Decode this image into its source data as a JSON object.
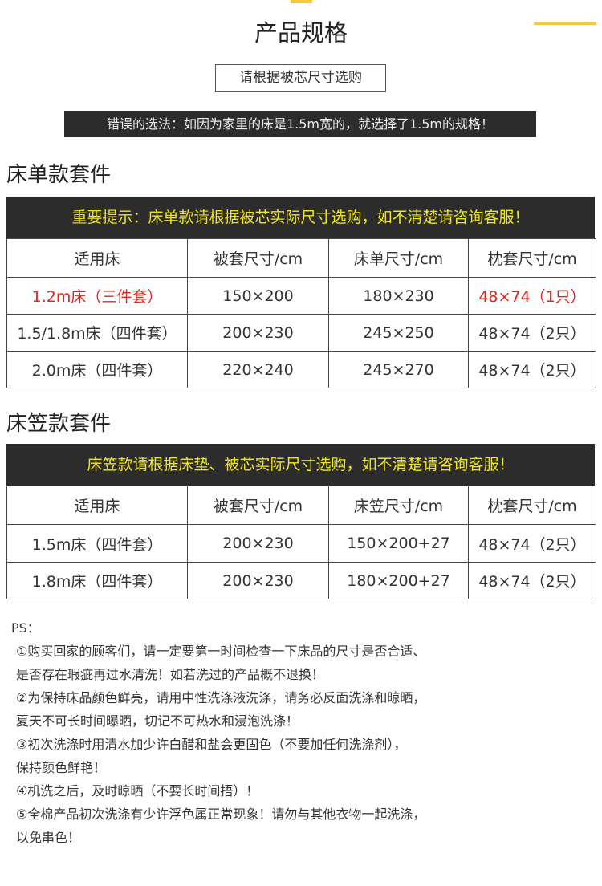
{
  "title": "产品规格",
  "hint": "请根据被芯尺寸选购",
  "wrong_choice": "错误的选法：如因为家里的床是1.5m宽的，就选择了1.5m的规格！",
  "accent_color": "#f5c842",
  "highlight_color": "#e8221a",
  "sheet_set": {
    "title": "床单款套件",
    "notice": "重要提示：床单款请根据被芯实际尺寸选购，如不清楚请咨询客服！",
    "headers": [
      "适用床",
      "被套尺寸/cm",
      "床单尺寸/cm",
      "枕套尺寸/cm"
    ],
    "rows": [
      [
        "1.2m床（三件套）",
        "150×200",
        "180×230",
        "48×74（1只）"
      ],
      [
        "1.5/1.8m床（四件套）",
        "200×230",
        "245×250",
        "48×74（2只）"
      ],
      [
        "2.0m床（四件套）",
        "220×240",
        "245×270",
        "48×74（2只）"
      ]
    ]
  },
  "fitted_set": {
    "title": "床笠款套件",
    "notice": "床笠款请根据床垫、被芯实际尺寸选购，如不清楚请咨询客服！",
    "headers": [
      "适用床",
      "被套尺寸/cm",
      "床笠尺寸/cm",
      "枕套尺寸/cm"
    ],
    "rows": [
      [
        "1.5m床（四件套）",
        "200×230",
        "150×200+27",
        "48×74（2只）"
      ],
      [
        "1.8m床（四件套）",
        "200×230",
        "180×200+27",
        "48×74（2只）"
      ]
    ]
  },
  "ps": {
    "label": "PS：",
    "lines": [
      "①购买回家的顾客们，请一定要第一时间检查一下床品的尺寸是否合适、",
      "是否存在瑕疵再过水清洗！如若洗过的产品概不退换！",
      "②为保持床品颜色鲜亮，请用中性洗涤液洗涤，请务必反面洗涤和晾晒，",
      "夏天不可长时间曝晒，切记不可热水和浸泡洗涤！",
      "③初次洗涤时用清水加少许白醋和盐会更固色（不要加任何洗涤剂），",
      "保持颜色鲜艳！",
      "④机洗之后，及时晾晒（不要长时间捂）！",
      "⑤全棉产品初次洗涤有少许浮色属正常现象！请勿与其他衣物一起洗涤，",
      "以免串色！"
    ]
  }
}
